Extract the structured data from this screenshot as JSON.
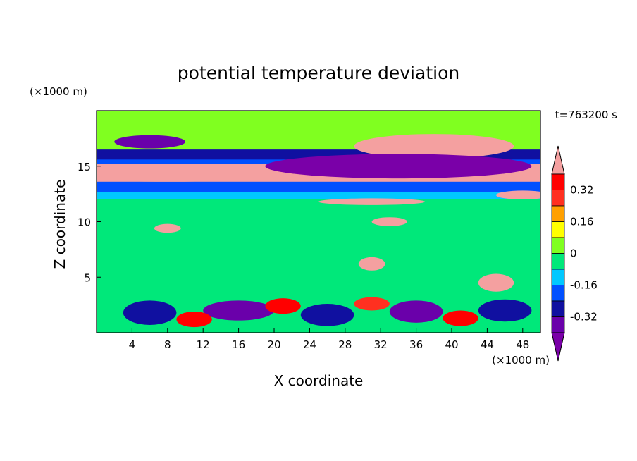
{
  "chart_data": {
    "type": "heatmap",
    "title": "potential temperature deviation",
    "xlabel": "X coordinate",
    "ylabel": "Z coordinate",
    "x_unit": "(×1000 m)",
    "y_unit": "(×1000 m)",
    "time_label": "t=763200 s",
    "xlim": [
      0,
      50
    ],
    "ylim": [
      0,
      20
    ],
    "x_ticks": [
      4,
      8,
      12,
      16,
      20,
      24,
      28,
      32,
      36,
      40,
      44,
      48
    ],
    "y_ticks": [
      5,
      10,
      15
    ],
    "colorbar": {
      "levels": [
        -0.4,
        -0.32,
        -0.24,
        -0.16,
        -0.08,
        0,
        0.08,
        0.16,
        0.24,
        0.32,
        0.4
      ],
      "colors": [
        "#7a00a8",
        "#6a00aa",
        "#1010a0",
        "#0050ff",
        "#00c8ff",
        "#00e87a",
        "#80ff20",
        "#ffff00",
        "#ffa000",
        "#ff3020",
        "#ff0000",
        "#f4a0a0"
      ],
      "tick_labels": [
        "0.32",
        "0.16",
        "0",
        "-0.16",
        "-0.32"
      ],
      "tick_values": [
        0.32,
        0.16,
        0,
        -0.16,
        -0.32
      ]
    },
    "bands": [
      {
        "z0": 18.0,
        "z1": 20.0,
        "level": 6
      },
      {
        "z0": 16.3,
        "z1": 18.0,
        "level": 6
      },
      {
        "z0": 15.5,
        "z1": 16.5,
        "level": 2
      },
      {
        "z0": 15.0,
        "z1": 15.6,
        "level": 3
      },
      {
        "z0": 13.4,
        "z1": 15.2,
        "level": 11
      },
      {
        "z0": 12.6,
        "z1": 13.6,
        "level": 3
      },
      {
        "z0": 12.0,
        "z1": 12.7,
        "level": 4
      },
      {
        "z0": 3.6,
        "z1": 12.0,
        "level": 5
      },
      {
        "z0": 0.0,
        "z1": 3.6,
        "level": 5
      }
    ],
    "features": [
      {
        "x": 38,
        "z": 16.8,
        "w": 18,
        "h": 2.2,
        "level": 11
      },
      {
        "x": 34,
        "z": 15.0,
        "w": 30,
        "h": 2.2,
        "level": 0
      },
      {
        "x": 6,
        "z": 17.2,
        "w": 8,
        "h": 1.2,
        "level": 1
      },
      {
        "x": 8,
        "z": 14.3,
        "w": 26,
        "h": 1.4,
        "level": 11
      },
      {
        "x": 31,
        "z": 11.8,
        "w": 12,
        "h": 0.6,
        "level": 11
      },
      {
        "x": 48,
        "z": 12.4,
        "w": 6,
        "h": 0.8,
        "level": 11
      },
      {
        "x": 33,
        "z": 10.0,
        "w": 4,
        "h": 0.8,
        "level": 11
      },
      {
        "x": 8,
        "z": 9.4,
        "w": 3,
        "h": 0.8,
        "level": 11
      },
      {
        "x": 31,
        "z": 6.2,
        "w": 3,
        "h": 1.2,
        "level": 11
      },
      {
        "x": 45,
        "z": 4.5,
        "w": 4,
        "h": 1.6,
        "level": 11
      },
      {
        "x": 6,
        "z": 1.8,
        "w": 6,
        "h": 2.2,
        "level": 2
      },
      {
        "x": 16,
        "z": 2.0,
        "w": 8,
        "h": 1.8,
        "level": 1
      },
      {
        "x": 26,
        "z": 1.6,
        "w": 6,
        "h": 2.0,
        "level": 2
      },
      {
        "x": 36,
        "z": 1.9,
        "w": 6,
        "h": 2.0,
        "level": 1
      },
      {
        "x": 46,
        "z": 2.0,
        "w": 6,
        "h": 2.0,
        "level": 2
      },
      {
        "x": 11,
        "z": 1.2,
        "w": 4,
        "h": 1.4,
        "level": 10
      },
      {
        "x": 21,
        "z": 2.4,
        "w": 4,
        "h": 1.4,
        "level": 10
      },
      {
        "x": 41,
        "z": 1.3,
        "w": 4,
        "h": 1.4,
        "level": 10
      },
      {
        "x": 31,
        "z": 2.6,
        "w": 4,
        "h": 1.2,
        "level": 9
      }
    ]
  }
}
